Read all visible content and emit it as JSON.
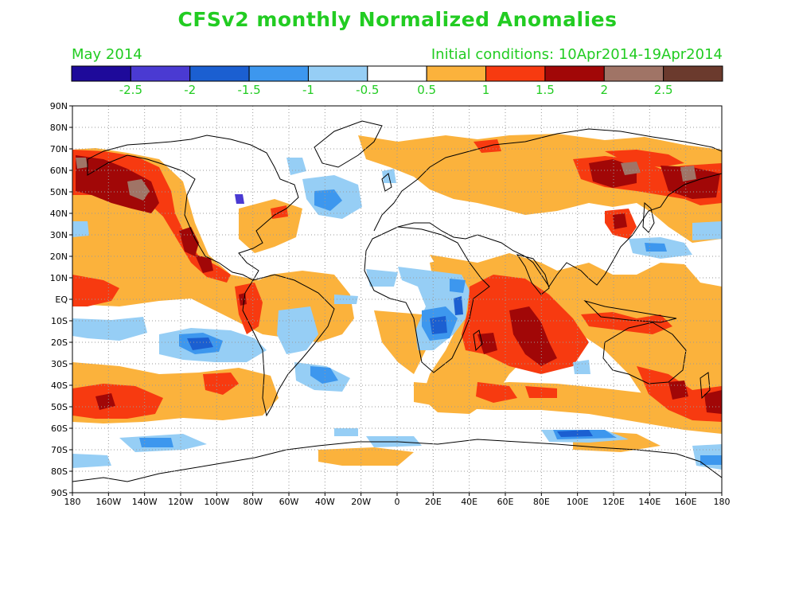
{
  "title": "CFSv2 monthly Normalized Anomalies",
  "month_label": "May 2014",
  "init_label": "Initial conditions: 10Apr2014-19Apr2014",
  "colors": {
    "text": "#22cc22",
    "bins": [
      "#1e0a9a",
      "#4a3ad2",
      "#1b5fd1",
      "#3d97ee",
      "#96cef5",
      "#ffffff",
      "#fbb23c",
      "#f73a10",
      "#a10707",
      "#a07466",
      "#6b3a2d"
    ]
  },
  "colorbar_ticks": [
    "-2.5",
    "-2",
    "-1.5",
    "-1",
    "-0.5",
    "0.5",
    "1",
    "1.5",
    "2",
    "2.5"
  ],
  "lat_labels": [
    "90N",
    "80N",
    "70N",
    "60N",
    "50N",
    "40N",
    "30N",
    "20N",
    "10N",
    "EQ",
    "10S",
    "20S",
    "30S",
    "40S",
    "50S",
    "60S",
    "70S",
    "80S",
    "90S"
  ],
  "lon_labels": [
    "180",
    "160W",
    "140W",
    "120W",
    "100W",
    "80W",
    "60W",
    "40W",
    "20W",
    "0",
    "20E",
    "40E",
    "60E",
    "80E",
    "100E",
    "120E",
    "140E",
    "160E",
    "180"
  ]
}
